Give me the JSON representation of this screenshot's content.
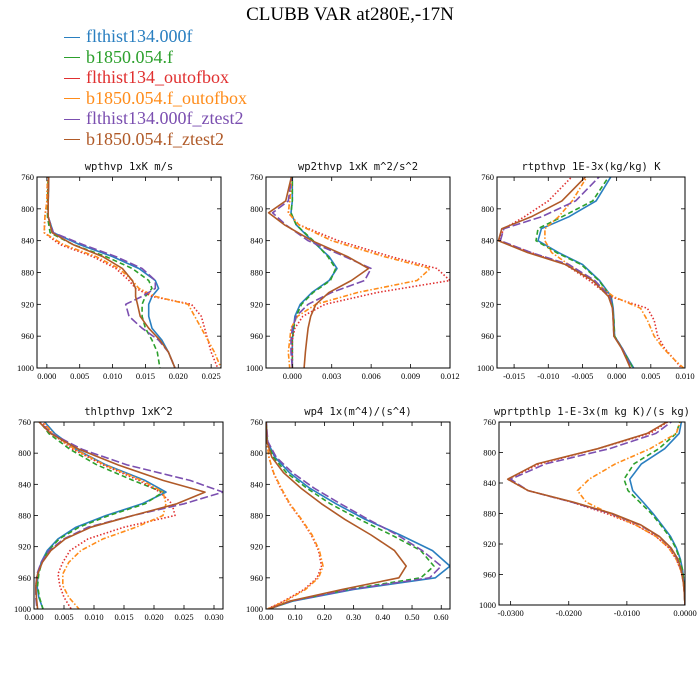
{
  "figure_title": "CLUBB VAR at280E,-17N",
  "legend": [
    {
      "name": "flthist134.000f",
      "color": "#2a7fc0",
      "dash": "solid"
    },
    {
      "name": "b1850.054.f",
      "color": "#2ca02c",
      "dash": "dash"
    },
    {
      "name": "flthist134_outofbox",
      "color": "#e03030",
      "dash": "dot"
    },
    {
      "name": "b1850.054.f_outofbox",
      "color": "#ff8c1a",
      "dash": "dashdot"
    },
    {
      "name": "flthist134.000f_ztest2",
      "color": "#7b4fb0",
      "dash": "longdash"
    },
    {
      "name": "b1850.054.f_ztest2",
      "color": "#b05a28",
      "dash": "solid"
    }
  ],
  "chart_data": [
    {
      "type": "line",
      "title": "wpthvp  1xK m/s",
      "xlim": [
        -0.0015,
        0.0265
      ],
      "ylim": [
        760,
        1000
      ],
      "y_inverted": true,
      "xticks": [
        0,
        0.005,
        0.01,
        0.015,
        0.02,
        0.025
      ],
      "xtick_labels": [
        "0.000",
        "0.005",
        "0.010",
        "0.015",
        "0.020",
        "0.025"
      ],
      "yticks": [
        760,
        800,
        840,
        880,
        920,
        960,
        1000
      ],
      "y": [
        755,
        790,
        810,
        830,
        845,
        860,
        875,
        890,
        900,
        910,
        920,
        935,
        950,
        965,
        980,
        1000
      ],
      "series": [
        {
          "values": [
            0.0003,
            0.0002,
            0.0002,
            0.001,
            0.005,
            0.01,
            0.014,
            0.0165,
            0.017,
            0.016,
            0.0155,
            0.0155,
            0.016,
            0.0175,
            0.0185,
            0.0195
          ]
        },
        {
          "values": [
            0.0002,
            0.0001,
            0.0001,
            0.0005,
            0.004,
            0.009,
            0.013,
            0.0155,
            0.016,
            0.015,
            0.0145,
            0.0145,
            0.015,
            0.016,
            0.0168,
            0.0172
          ]
        },
        {
          "values": [
            0.0001,
            0.0,
            -0.0003,
            -0.0004,
            0.002,
            0.007,
            0.0105,
            0.0125,
            0.0135,
            0.016,
            0.022,
            0.0235,
            0.024,
            0.0245,
            0.025,
            0.026
          ]
        },
        {
          "values": [
            0.0001,
            0.0,
            -0.0003,
            -0.0004,
            0.0025,
            0.0075,
            0.011,
            0.013,
            0.014,
            0.0165,
            0.0215,
            0.0225,
            0.0235,
            0.0245,
            0.0255,
            0.0265
          ]
        },
        {
          "values": [
            0.0003,
            0.0002,
            0.0002,
            0.001,
            0.0055,
            0.0105,
            0.0145,
            0.0165,
            0.0165,
            0.0145,
            0.012,
            0.0125,
            0.0145,
            0.017,
            0.0185,
            0.0195
          ]
        },
        {
          "values": [
            0.0003,
            0.0002,
            0.0002,
            0.0008,
            0.004,
            0.0085,
            0.0115,
            0.013,
            0.0135,
            0.0135,
            0.0138,
            0.0142,
            0.0155,
            0.0172,
            0.0185,
            0.0195
          ]
        }
      ]
    },
    {
      "type": "line",
      "title": "wp2thvp  1xK m^2/s^2",
      "xlim": [
        -0.002,
        0.012
      ],
      "ylim": [
        760,
        1000
      ],
      "y_inverted": true,
      "xticks": [
        0,
        0.003,
        0.006,
        0.009,
        0.012
      ],
      "xtick_labels": [
        "0.000",
        "0.003",
        "0.006",
        "0.009",
        "0.012"
      ],
      "yticks": [
        760,
        800,
        840,
        880,
        920,
        960,
        1000
      ],
      "y": [
        755,
        790,
        805,
        820,
        840,
        860,
        875,
        890,
        905,
        920,
        935,
        950,
        965,
        980,
        1000
      ],
      "series": [
        {
          "values": [
            0.0,
            0.0,
            -0.0001,
            0.0003,
            0.0015,
            0.0028,
            0.0034,
            0.0028,
            0.0015,
            0.0006,
            0.0002,
            0.0001,
            0.0,
            0.0,
            0.0
          ]
        },
        {
          "values": [
            0.0,
            0.0,
            -0.0001,
            0.0003,
            0.0016,
            0.0027,
            0.0033,
            0.0029,
            0.0016,
            0.0007,
            0.0003,
            0.0001,
            0.0,
            0.0,
            0.0
          ]
        },
        {
          "values": [
            0.0,
            -0.0002,
            -0.0003,
            0.0005,
            0.0035,
            0.0075,
            0.011,
            0.012,
            0.0065,
            0.0025,
            0.0008,
            0.0002,
            0.0,
            0.0,
            0.0
          ]
        },
        {
          "values": [
            0.0,
            -0.0002,
            -0.0003,
            0.0005,
            0.003,
            0.007,
            0.0105,
            0.0095,
            0.005,
            0.0018,
            0.0004,
            -0.0001,
            -0.0002,
            -0.0003,
            -0.0002
          ]
        },
        {
          "values": [
            0.0,
            -0.0003,
            -0.0015,
            -0.0005,
            0.0012,
            0.004,
            0.006,
            0.0055,
            0.003,
            0.0012,
            0.0003,
            0.0,
            -0.0001,
            -0.0001,
            0.0
          ]
        },
        {
          "values": [
            0.0,
            -0.0005,
            -0.0018,
            -0.0006,
            0.0015,
            0.0042,
            0.0058,
            0.0045,
            0.0028,
            0.0018,
            0.0014,
            0.0012,
            0.0011,
            0.001,
            0.0009
          ]
        }
      ]
    },
    {
      "type": "line",
      "title": "rtpthvp  1E-3x(kg/kg) K",
      "xlim": [
        -0.0175,
        0.01
      ],
      "ylim": [
        760,
        1000
      ],
      "y_inverted": true,
      "xticks": [
        -0.015,
        -0.01,
        -0.005,
        0,
        0.005,
        0.01
      ],
      "xtick_labels": [
        "-0.015",
        "-0.010",
        "-0.005",
        "0.000",
        "0.005",
        "0.010"
      ],
      "yticks": [
        760,
        800,
        840,
        880,
        920,
        960,
        1000
      ],
      "y": [
        755,
        790,
        810,
        825,
        840,
        855,
        870,
        890,
        910,
        925,
        940,
        960,
        975,
        990,
        1000
      ],
      "series": [
        {
          "values": [
            -0.0005,
            -0.003,
            -0.007,
            -0.011,
            -0.0115,
            -0.0085,
            -0.005,
            -0.0025,
            -0.0008,
            -0.0005,
            -0.0004,
            -0.0003,
            0.0008,
            0.0018,
            0.0025
          ]
        },
        {
          "values": [
            -0.0008,
            -0.0035,
            -0.008,
            -0.0115,
            -0.0118,
            -0.0088,
            -0.0052,
            -0.0026,
            -0.0009,
            -0.0006,
            -0.0004,
            -0.0003,
            0.0008,
            0.0017,
            0.0024
          ]
        },
        {
          "values": [
            -0.006,
            -0.01,
            -0.0135,
            -0.0165,
            -0.0172,
            -0.0125,
            -0.0075,
            -0.004,
            -0.001,
            0.0045,
            0.0055,
            0.006,
            0.007,
            0.0085,
            0.0095
          ]
        },
        {
          "values": [
            -0.004,
            -0.0065,
            -0.0085,
            -0.0105,
            -0.0105,
            -0.0095,
            -0.007,
            -0.0035,
            -0.0005,
            0.0035,
            0.0045,
            0.0055,
            0.0068,
            0.0085,
            0.0098
          ]
        },
        {
          "values": [
            -0.002,
            -0.006,
            -0.011,
            -0.0165,
            -0.017,
            -0.0125,
            -0.007,
            -0.0032,
            -0.001,
            -0.0006,
            -0.0005,
            -0.0004,
            0.0008,
            0.0016,
            0.0022
          ]
        },
        {
          "values": [
            -0.004,
            -0.008,
            -0.0125,
            -0.0168,
            -0.0173,
            -0.013,
            -0.0075,
            -0.0035,
            -0.0012,
            -0.0006,
            -0.0005,
            -0.0004,
            0.0007,
            0.0015,
            0.002
          ]
        }
      ]
    },
    {
      "type": "line",
      "title": "thlpthvp  1xK^2",
      "xlim": [
        0,
        0.0315
      ],
      "ylim": [
        760,
        1000
      ],
      "y_inverted": true,
      "xticks": [
        0,
        0.005,
        0.01,
        0.015,
        0.02,
        0.025,
        0.03
      ],
      "xtick_labels": [
        "0.000",
        "0.005",
        "0.010",
        "0.015",
        "0.020",
        "0.025",
        "0.030"
      ],
      "yticks": [
        760,
        800,
        840,
        880,
        920,
        960,
        1000
      ],
      "y": [
        755,
        775,
        795,
        815,
        835,
        850,
        865,
        880,
        895,
        910,
        925,
        940,
        955,
        970,
        985,
        1000
      ],
      "series": [
        {
          "values": [
            0.0012,
            0.0035,
            0.007,
            0.012,
            0.0185,
            0.022,
            0.018,
            0.012,
            0.007,
            0.004,
            0.0022,
            0.0012,
            0.0007,
            0.0005,
            0.0008,
            0.0015
          ]
        },
        {
          "values": [
            0.0005,
            0.0025,
            0.006,
            0.0105,
            0.0165,
            0.0215,
            0.0185,
            0.0125,
            0.0075,
            0.0042,
            0.0024,
            0.0013,
            0.0008,
            0.0006,
            0.0009,
            0.0015
          ]
        },
        {
          "values": [
            0.0008,
            0.003,
            0.0065,
            0.0115,
            0.0175,
            0.021,
            0.023,
            0.0235,
            0.015,
            0.009,
            0.006,
            0.0048,
            0.004,
            0.0043,
            0.005,
            0.0062
          ]
        },
        {
          "values": [
            0.001,
            0.0032,
            0.0068,
            0.0118,
            0.018,
            0.0215,
            0.022,
            0.0215,
            0.017,
            0.0115,
            0.0078,
            0.0058,
            0.0048,
            0.0048,
            0.0058,
            0.0075
          ]
        },
        {
          "values": [
            0.0002,
            0.003,
            0.008,
            0.0155,
            0.026,
            0.0315,
            0.025,
            0.0165,
            0.009,
            0.005,
            0.0025,
            0.0012,
            0.0005,
            0.0003,
            0.0003,
            0.0005
          ]
        },
        {
          "values": [
            0.0002,
            0.0028,
            0.0075,
            0.014,
            0.0215,
            0.0285,
            0.0238,
            0.0165,
            0.0095,
            0.0052,
            0.0028,
            0.0014,
            0.0006,
            0.0003,
            0.0004,
            0.0006
          ]
        }
      ]
    },
    {
      "type": "line",
      "title": "wp4  1x(m^4)/(s^4)",
      "xlim": [
        0,
        0.63
      ],
      "ylim": [
        760,
        1000
      ],
      "y_inverted": true,
      "xticks": [
        0,
        0.1,
        0.2,
        0.3,
        0.4,
        0.5,
        0.6
      ],
      "xtick_labels": [
        "0.00",
        "0.10",
        "0.20",
        "0.30",
        "0.40",
        "0.50",
        "0.60"
      ],
      "yticks": [
        760,
        800,
        840,
        880,
        920,
        960,
        1000
      ],
      "y": [
        755,
        785,
        805,
        825,
        845,
        865,
        885,
        905,
        925,
        945,
        960,
        975,
        990,
        1000
      ],
      "series": [
        {
          "values": [
            0.0,
            0.005,
            0.03,
            0.08,
            0.15,
            0.24,
            0.34,
            0.46,
            0.57,
            0.63,
            0.58,
            0.3,
            0.09,
            0.01
          ]
        },
        {
          "values": [
            0.0,
            0.004,
            0.025,
            0.07,
            0.14,
            0.22,
            0.32,
            0.43,
            0.53,
            0.575,
            0.53,
            0.28,
            0.085,
            0.01
          ]
        },
        {
          "values": [
            0.0,
            0.003,
            0.01,
            0.025,
            0.05,
            0.08,
            0.12,
            0.155,
            0.18,
            0.19,
            0.175,
            0.13,
            0.06,
            0.005
          ]
        },
        {
          "values": [
            0.0,
            0.003,
            0.01,
            0.026,
            0.052,
            0.082,
            0.122,
            0.158,
            0.183,
            0.195,
            0.18,
            0.135,
            0.065,
            0.005
          ]
        },
        {
          "values": [
            0.0,
            0.006,
            0.035,
            0.09,
            0.165,
            0.255,
            0.35,
            0.45,
            0.535,
            0.6,
            0.56,
            0.29,
            0.085,
            0.01
          ]
        },
        {
          "values": [
            0.0,
            0.003,
            0.02,
            0.06,
            0.12,
            0.19,
            0.27,
            0.36,
            0.44,
            0.48,
            0.455,
            0.26,
            0.08,
            0.01
          ]
        }
      ]
    },
    {
      "type": "line",
      "title": "wprtpthlp  1-E-3x(m kg K)/(s kg)",
      "xlim": [
        -0.032,
        0.0
      ],
      "ylim": [
        760,
        1000
      ],
      "y_inverted": true,
      "xticks": [
        -0.03,
        -0.02,
        -0.01,
        0
      ],
      "xtick_labels": [
        "-0.0300",
        "-0.0200",
        "-0.0100",
        "0.0000"
      ],
      "yticks": [
        760,
        800,
        840,
        880,
        920,
        960,
        1000
      ],
      "y": [
        755,
        775,
        795,
        815,
        835,
        850,
        865,
        880,
        895,
        910,
        925,
        940,
        955,
        970,
        985,
        1000
      ],
      "series": [
        {
          "values": [
            -0.0005,
            -0.001,
            -0.0035,
            -0.0075,
            -0.0095,
            -0.009,
            -0.0072,
            -0.0055,
            -0.004,
            -0.0025,
            -0.0015,
            -0.0008,
            -0.0004,
            -0.0002,
            -0.0001,
            0.0
          ]
        },
        {
          "values": [
            -0.0007,
            -0.0015,
            -0.0045,
            -0.0088,
            -0.0105,
            -0.0098,
            -0.0078,
            -0.0058,
            -0.0042,
            -0.0027,
            -0.0016,
            -0.0009,
            -0.0004,
            -0.0002,
            -0.0001,
            0.0
          ]
        },
        {
          "values": [
            -0.002,
            -0.006,
            -0.015,
            -0.025,
            -0.0305,
            -0.027,
            -0.0195,
            -0.0135,
            -0.0085,
            -0.005,
            -0.0028,
            -0.0015,
            -0.0007,
            -0.0003,
            -0.0001,
            0.0
          ]
        },
        {
          "values": [
            -0.0006,
            -0.0015,
            -0.006,
            -0.012,
            -0.0165,
            -0.0185,
            -0.017,
            -0.013,
            -0.0085,
            -0.005,
            -0.0028,
            -0.0015,
            -0.0007,
            -0.0003,
            -0.0001,
            0.0
          ]
        },
        {
          "values": [
            -0.0015,
            -0.005,
            -0.013,
            -0.024,
            -0.03,
            -0.027,
            -0.0195,
            -0.0128,
            -0.0078,
            -0.0045,
            -0.0025,
            -0.0013,
            -0.0006,
            -0.0003,
            -0.0001,
            0.0
          ]
        },
        {
          "values": [
            -0.002,
            -0.0065,
            -0.015,
            -0.0255,
            -0.0305,
            -0.027,
            -0.0192,
            -0.0125,
            -0.0076,
            -0.0044,
            -0.0024,
            -0.0012,
            -0.0006,
            -0.0003,
            -0.0001,
            0.0
          ]
        }
      ]
    }
  ]
}
